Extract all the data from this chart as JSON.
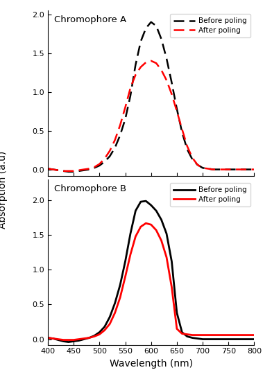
{
  "xlim": [
    400,
    800
  ],
  "xticks": [
    400,
    450,
    500,
    550,
    600,
    650,
    700,
    750,
    800
  ],
  "top_yticks": [
    0.0,
    0.5,
    1.0,
    1.5,
    2.0
  ],
  "top_label": "Chromophore A",
  "top_legend_before": "Before poling",
  "top_legend_after": "After poling",
  "bot_yticks": [
    0.0,
    0.5,
    1.0,
    1.5,
    2.0
  ],
  "bot_label": "Chromophore B",
  "bot_legend_before": "Before poling",
  "bot_legend_after": "After poling",
  "ylabel": "Absorption (a.u)",
  "xlabel": "Wavelength (nm)",
  "color_black": "#000000",
  "color_red": "#ff0000",
  "top_before_x": [
    400,
    410,
    420,
    430,
    440,
    450,
    460,
    470,
    480,
    490,
    500,
    510,
    520,
    530,
    540,
    550,
    560,
    570,
    580,
    590,
    600,
    610,
    620,
    630,
    640,
    650,
    660,
    670,
    680,
    690,
    700,
    710,
    720,
    730,
    740,
    750,
    760,
    770,
    780,
    790,
    800
  ],
  "top_before_y": [
    0.01,
    0.0,
    -0.01,
    -0.02,
    -0.03,
    -0.03,
    -0.02,
    -0.01,
    0.0,
    0.02,
    0.05,
    0.1,
    0.17,
    0.28,
    0.44,
    0.65,
    0.95,
    1.35,
    1.65,
    1.82,
    1.9,
    1.85,
    1.68,
    1.43,
    1.12,
    0.78,
    0.48,
    0.26,
    0.13,
    0.06,
    0.02,
    0.01,
    0.0,
    0.0,
    0.0,
    0.0,
    0.0,
    0.0,
    0.0,
    0.0,
    0.0
  ],
  "top_after_x": [
    400,
    410,
    420,
    430,
    440,
    450,
    460,
    470,
    480,
    490,
    500,
    510,
    520,
    530,
    540,
    550,
    560,
    570,
    580,
    590,
    600,
    610,
    620,
    630,
    640,
    650,
    660,
    670,
    680,
    690,
    700,
    710,
    720,
    730,
    740,
    750,
    760,
    770,
    780,
    790,
    800
  ],
  "top_after_y": [
    0.01,
    0.0,
    -0.01,
    -0.02,
    -0.02,
    -0.02,
    -0.01,
    0.0,
    0.01,
    0.03,
    0.07,
    0.14,
    0.24,
    0.38,
    0.57,
    0.8,
    1.05,
    1.22,
    1.32,
    1.38,
    1.4,
    1.37,
    1.28,
    1.15,
    0.97,
    0.75,
    0.52,
    0.3,
    0.15,
    0.06,
    0.02,
    0.01,
    0.0,
    0.0,
    0.0,
    0.0,
    0.0,
    0.0,
    0.0,
    0.0,
    0.0
  ],
  "bot_before_x": [
    400,
    410,
    420,
    430,
    440,
    450,
    460,
    470,
    480,
    490,
    500,
    510,
    520,
    530,
    540,
    550,
    560,
    570,
    580,
    590,
    600,
    610,
    620,
    630,
    640,
    650,
    660,
    670,
    680,
    690,
    700,
    710,
    720,
    730,
    740,
    750,
    760,
    770,
    780,
    790,
    800
  ],
  "bot_before_y": [
    0.02,
    0.01,
    -0.01,
    -0.03,
    -0.04,
    -0.03,
    -0.02,
    0.0,
    0.02,
    0.05,
    0.1,
    0.18,
    0.32,
    0.52,
    0.78,
    1.12,
    1.52,
    1.85,
    1.98,
    1.99,
    1.93,
    1.85,
    1.72,
    1.52,
    1.12,
    0.38,
    0.1,
    0.04,
    0.02,
    0.01,
    0.0,
    0.0,
    0.0,
    0.0,
    0.0,
    0.0,
    0.0,
    0.0,
    0.0,
    0.0,
    0.0
  ],
  "bot_after_x": [
    400,
    410,
    420,
    430,
    440,
    450,
    460,
    470,
    480,
    490,
    500,
    510,
    520,
    530,
    540,
    550,
    560,
    570,
    580,
    590,
    600,
    610,
    620,
    630,
    640,
    650,
    660,
    670,
    680,
    690,
    700,
    710,
    720,
    730,
    740,
    750,
    760,
    770,
    780,
    790,
    800
  ],
  "bot_after_y": [
    0.02,
    0.01,
    0.0,
    -0.01,
    -0.01,
    -0.01,
    0.0,
    0.01,
    0.02,
    0.04,
    0.07,
    0.13,
    0.22,
    0.38,
    0.6,
    0.9,
    1.22,
    1.48,
    1.62,
    1.67,
    1.65,
    1.57,
    1.42,
    1.18,
    0.75,
    0.15,
    0.08,
    0.07,
    0.06,
    0.06,
    0.06,
    0.06,
    0.06,
    0.06,
    0.06,
    0.06,
    0.06,
    0.06,
    0.06,
    0.06,
    0.06
  ]
}
